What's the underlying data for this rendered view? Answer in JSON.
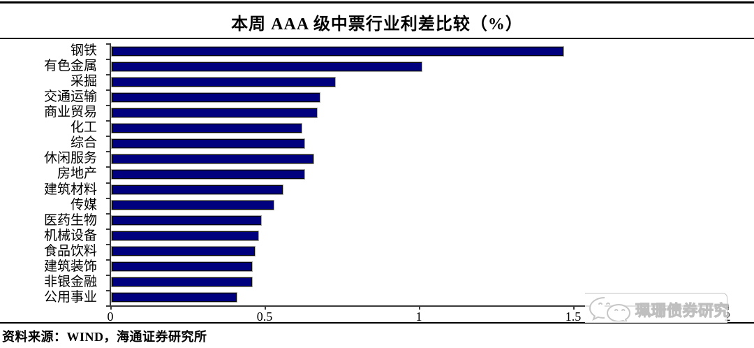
{
  "title": "本周 AAA 级中票行业利差比较（%）",
  "source_note": "资料来源：WIND，海通证券研究所",
  "watermark": {
    "icon": "wechat-icon",
    "label": "珮珊债券研究"
  },
  "chart_data": {
    "type": "bar",
    "orientation": "horizontal",
    "title": "本周 AAA 级中票行业利差比较（%）",
    "xlabel": "",
    "ylabel": "",
    "xlim": [
      0,
      2
    ],
    "x_ticks": [
      0,
      0.5,
      1,
      1.5,
      2
    ],
    "x_tick_labels": [
      "0",
      "0.5",
      "1",
      "1.5",
      "2"
    ],
    "grid": false,
    "legend": false,
    "bar_color": "#00007E",
    "categories": [
      "钢铁",
      "有色金属",
      "采掘",
      "交通运输",
      "商业贸易",
      "化工",
      "综合",
      "休闲服务",
      "房地产",
      "建筑材料",
      "传媒",
      "医药生物",
      "机械设备",
      "食品饮料",
      "建筑装饰",
      "非银金融",
      "公用事业"
    ],
    "values": [
      1.46,
      1.0,
      0.72,
      0.67,
      0.66,
      0.61,
      0.62,
      0.65,
      0.62,
      0.55,
      0.52,
      0.48,
      0.47,
      0.46,
      0.45,
      0.45,
      0.4
    ]
  }
}
